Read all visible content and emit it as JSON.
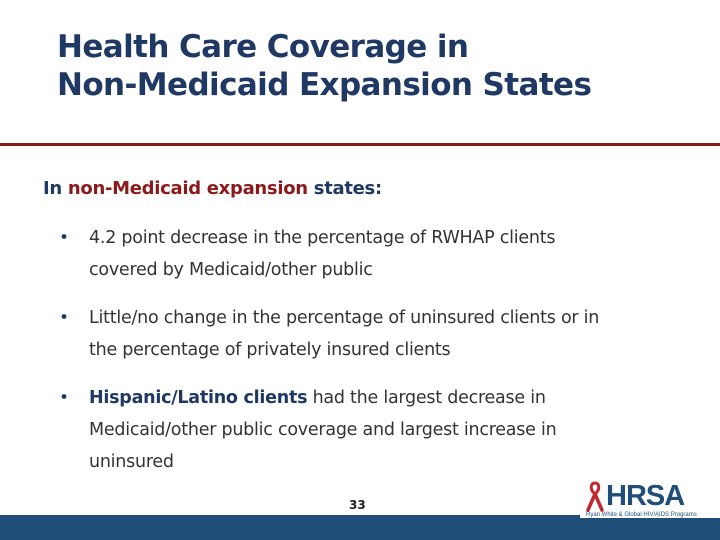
{
  "slide": {
    "title_lines": [
      "Health Care Coverage in",
      "Non-Medicaid Expansion States"
    ],
    "intro": {
      "prefix": "In ",
      "highlight": "non-Medicaid expansion",
      "suffix": " states:"
    },
    "bullets": [
      {
        "lines": [
          "4.2 point decrease in the percentage of RWHAP clients",
          "covered by Medicaid/other public"
        ]
      },
      {
        "lines": [
          "Little/no change in the percentage of uninsured clients or in",
          "the percentage of privately insured clients"
        ]
      },
      {
        "strong": "Hispanic/Latino clients",
        "lines": [
          " had the largest decrease in",
          "Medicaid/other public coverage and largest increase in",
          "uninsured"
        ]
      }
    ],
    "bullet_glyph": "•",
    "page_number": "33"
  },
  "logo": {
    "wordmark": "HRSA",
    "tagline": "Ryan White & Global HIV/AIDS Programs",
    "icon": "red-ribbon-icon"
  },
  "colors": {
    "title": "#1f3864",
    "accent": "#8b1a1a",
    "body_text": "#333333",
    "footer": "#1f4e79"
  }
}
